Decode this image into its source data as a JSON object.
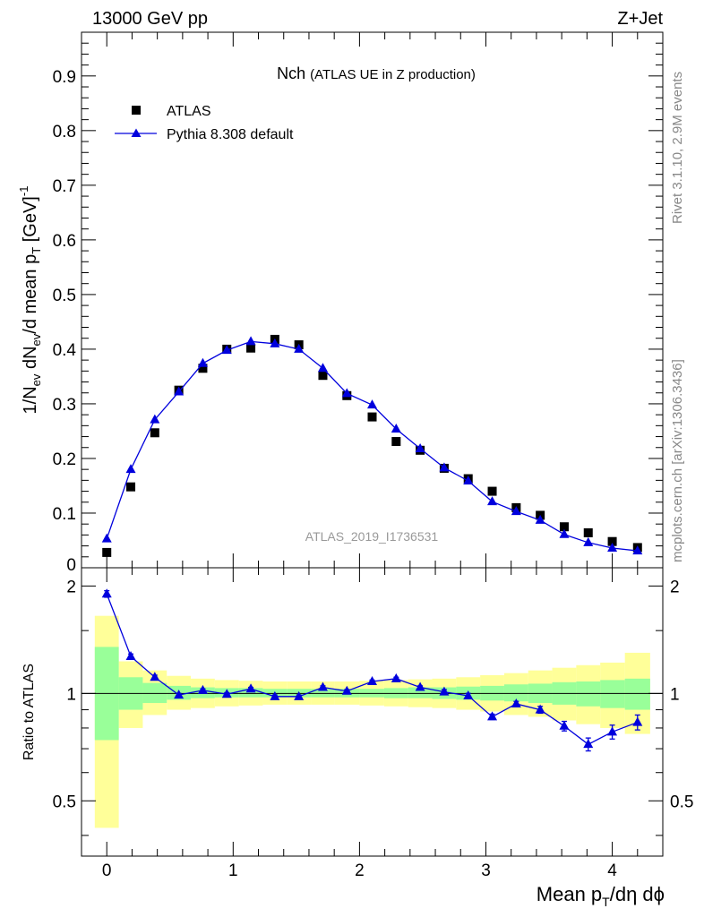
{
  "header": {
    "left": "13000 GeV pp",
    "right": "Z+Jet"
  },
  "side_labels": {
    "rivet": "Rivet 3.1.10,  2.9M events",
    "mcplots": "mcplots.cern.ch [arXiv:1306.3436]"
  },
  "colors": {
    "mc": "#0000dd",
    "data": "#000000",
    "band_inner": "#99ff99",
    "band_outer": "#ffff99"
  },
  "chart_data": {
    "type": "scatter",
    "title": "Nch",
    "subtitle": "(ATLAS UE in Z production)",
    "analysis_label": "ATLAS_2019_I1736531",
    "x": [
      0.0,
      0.19,
      0.38,
      0.57,
      0.76,
      0.95,
      1.14,
      1.33,
      1.52,
      1.71,
      1.9,
      2.1,
      2.29,
      2.48,
      2.67,
      2.86,
      3.05,
      3.24,
      3.43,
      3.62,
      3.81,
      4.0,
      4.2
    ],
    "xlabel": "Mean p_T/dη dϕ",
    "ylabel": "1/N_ev dN_ev/d mean p_T [GeV]^-1",
    "xlim": [
      -0.2,
      4.4
    ],
    "xticks": [
      "0",
      "1",
      "2",
      "3",
      "4"
    ],
    "main": {
      "ylim": [
        0,
        0.98
      ],
      "yticks": [
        "0.1",
        "0.2",
        "0.3",
        "0.4",
        "0.5",
        "0.6",
        "0.7",
        "0.8",
        "0.9"
      ],
      "series": [
        {
          "name": "ATLAS",
          "marker": "square",
          "values": [
            0.028,
            0.148,
            0.247,
            0.325,
            0.365,
            0.4,
            0.402,
            0.418,
            0.408,
            0.352,
            0.315,
            0.276,
            0.231,
            0.215,
            0.182,
            0.163,
            0.14,
            0.11,
            0.096,
            0.075,
            0.064,
            0.048,
            0.037
          ]
        },
        {
          "name": "Pythia 8.308 default",
          "marker": "triangle",
          "values": [
            0.053,
            0.18,
            0.271,
            0.322,
            0.374,
            0.398,
            0.414,
            0.41,
            0.4,
            0.365,
            0.319,
            0.298,
            0.254,
            0.218,
            0.183,
            0.159,
            0.121,
            0.103,
            0.087,
            0.061,
            0.046,
            0.036,
            0.031
          ]
        }
      ]
    },
    "ratio": {
      "ylabel": "Ratio to ATLAS",
      "ylim": [
        0.35,
        2.25
      ],
      "yticks": [
        "0.5",
        "1",
        "2"
      ],
      "values": [
        1.9,
        1.27,
        1.11,
        0.99,
        1.02,
        0.995,
        1.03,
        0.98,
        0.98,
        1.04,
        1.015,
        1.08,
        1.1,
        1.04,
        1.01,
        0.985,
        0.86,
        0.935,
        0.9,
        0.81,
        0.72,
        0.78,
        0.83
      ],
      "errors": [
        0.04,
        0.02,
        0.015,
        0.01,
        0.01,
        0.01,
        0.01,
        0.01,
        0.01,
        0.01,
        0.01,
        0.01,
        0.01,
        0.01,
        0.015,
        0.015,
        0.015,
        0.015,
        0.02,
        0.025,
        0.03,
        0.035,
        0.04
      ],
      "band_inner": [
        [
          0.74,
          1.35
        ],
        [
          0.9,
          1.11
        ],
        [
          0.94,
          1.07
        ],
        [
          0.96,
          1.05
        ],
        [
          0.97,
          1.04
        ],
        [
          0.975,
          1.035
        ],
        [
          0.975,
          1.035
        ],
        [
          0.975,
          1.03
        ],
        [
          0.975,
          1.03
        ],
        [
          0.975,
          1.03
        ],
        [
          0.975,
          1.03
        ],
        [
          0.975,
          1.03
        ],
        [
          0.97,
          1.035
        ],
        [
          0.97,
          1.04
        ],
        [
          0.965,
          1.04
        ],
        [
          0.96,
          1.045
        ],
        [
          0.955,
          1.05
        ],
        [
          0.95,
          1.06
        ],
        [
          0.94,
          1.065
        ],
        [
          0.93,
          1.075
        ],
        [
          0.92,
          1.08
        ],
        [
          0.91,
          1.09
        ],
        [
          0.9,
          1.1
        ]
      ],
      "band_outer": [
        [
          0.42,
          1.65
        ],
        [
          0.8,
          1.23
        ],
        [
          0.87,
          1.16
        ],
        [
          0.9,
          1.12
        ],
        [
          0.91,
          1.1
        ],
        [
          0.92,
          1.09
        ],
        [
          0.925,
          1.085
        ],
        [
          0.93,
          1.08
        ],
        [
          0.93,
          1.08
        ],
        [
          0.93,
          1.08
        ],
        [
          0.93,
          1.08
        ],
        [
          0.925,
          1.085
        ],
        [
          0.92,
          1.09
        ],
        [
          0.915,
          1.095
        ],
        [
          0.91,
          1.1
        ],
        [
          0.9,
          1.11
        ],
        [
          0.89,
          1.125
        ],
        [
          0.87,
          1.14
        ],
        [
          0.86,
          1.16
        ],
        [
          0.84,
          1.18
        ],
        [
          0.82,
          1.2
        ],
        [
          0.8,
          1.22
        ],
        [
          0.77,
          1.3
        ]
      ]
    }
  }
}
